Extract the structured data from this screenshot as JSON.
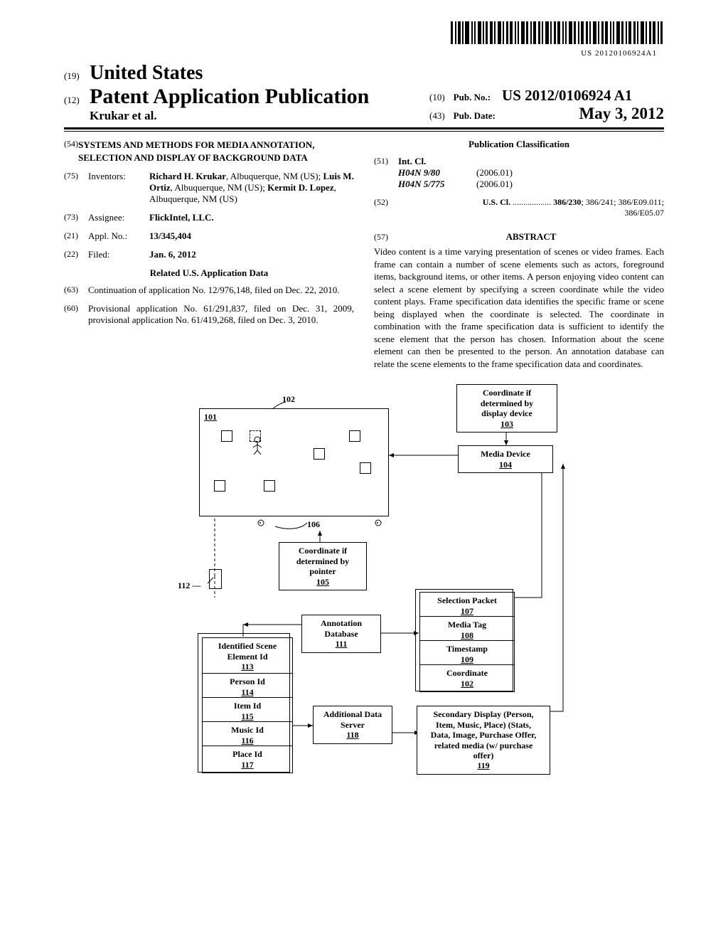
{
  "barcode_number": "US 20120106924A1",
  "header": {
    "inid19": "(19)",
    "country": "United States",
    "inid12": "(12)",
    "doc_type": "Patent Application Publication",
    "authors_short": "Krukar et al.",
    "inid10": "(10)",
    "pubno_label": "Pub. No.:",
    "pubno_value": "US 2012/0106924 A1",
    "inid43": "(43)",
    "pubdate_label": "Pub. Date:",
    "pubdate_value": "May 3, 2012"
  },
  "left": {
    "f54_inid": "(54)",
    "f54_title": "SYSTEMS AND METHODS FOR MEDIA ANNOTATION, SELECTION AND DISPLAY OF BACKGROUND DATA",
    "f75_inid": "(75)",
    "f75_label": "Inventors:",
    "f75_body_html": "<b>Richard H. Krukar</b>, Albuquerque, NM (US); <b>Luis M. Ortiz</b>, Albuquerque, NM (US); <b>Kermit D. Lopez</b>, Albuquerque, NM (US)",
    "f73_inid": "(73)",
    "f73_label": "Assignee:",
    "f73_body": "FlickIntel, LLC.",
    "f21_inid": "(21)",
    "f21_label": "Appl. No.:",
    "f21_body": "13/345,404",
    "f22_inid": "(22)",
    "f22_label": "Filed:",
    "f22_body": "Jan. 6, 2012",
    "related_hdr": "Related U.S. Application Data",
    "f63_inid": "(63)",
    "f63_body": "Continuation of application No. 12/976,148, filed on Dec. 22, 2010.",
    "f60_inid": "(60)",
    "f60_body": "Provisional application No. 61/291,837, filed on Dec. 31, 2009, provisional application No. 61/419,268, filed on Dec. 3, 2010."
  },
  "right": {
    "pc_hdr": "Publication Classification",
    "f51_inid": "(51)",
    "f51_label": "Int. Cl.",
    "intcl": [
      {
        "code": "H04N 9/80",
        "ver": "(2006.01)"
      },
      {
        "code": "H04N 5/775",
        "ver": "(2006.01)"
      }
    ],
    "f52_inid": "(52)",
    "f52_label": "U.S. Cl.",
    "f52_dots": " .................. ",
    "f52_body": "386/230; 386/241; 386/E09.011; 386/E05.07",
    "f57_inid": "(57)",
    "abstract_hdr": "ABSTRACT",
    "abstract_body": "Video content is a time varying presentation of scenes or video frames. Each frame can contain a number of scene elements such as actors, foreground items, background items, or other items. A person enjoying video content can select a scene element by specifying a screen coordinate while the video content plays. Frame specification data identifies the specific frame or scene being displayed when the coordinate is selected. The coordinate in combination with the frame specification data is sufficient to identify the scene element that the person has chosen. Information about the scene element can then be presented to the person. An annotation database can relate the scene elements to the frame specification data and coordinates."
  },
  "figure": {
    "ref101": "101",
    "ref102": "102",
    "ref103": {
      "l1": "Coordinate if",
      "l2": "determined by",
      "l3": "display device",
      "ref": "103"
    },
    "ref104": {
      "l1": "Media Device",
      "ref": "104"
    },
    "ref105": {
      "l1": "Coordinate if",
      "l2": "determined by",
      "l3": "pointer",
      "ref": "105"
    },
    "ref106": "106",
    "ref107": {
      "l1": "Selection Packet",
      "ref": "107"
    },
    "ref108": {
      "l1": "Media Tag",
      "ref": "108"
    },
    "ref109": {
      "l1": "Timestamp",
      "ref": "109"
    },
    "ref110": {
      "l1": "Coordinate",
      "ref": "102"
    },
    "ref111": {
      "l1": "Annotation",
      "l2": "Database",
      "ref": "111"
    },
    "ref112": "112",
    "ref113": {
      "l1": "Identified Scene",
      "l2": "Element Id",
      "ref": "113"
    },
    "ref114": {
      "l1": "Person Id",
      "ref": "114"
    },
    "ref115": {
      "l1": "Item Id",
      "ref": "115"
    },
    "ref116": {
      "l1": "Music Id",
      "ref": "116"
    },
    "ref117": {
      "l1": "Place Id",
      "ref": "117"
    },
    "ref118": {
      "l1": "Additional Data",
      "l2": "Server",
      "ref": "118"
    },
    "ref119": {
      "l1": "Secondary Display (Person,",
      "l2": "Item, Music, Place) (Stats,",
      "l3": "Data, Image, Purchase Offer,",
      "l4": "related media (w/ purchase",
      "l5": "offer)",
      "ref": "119"
    }
  }
}
